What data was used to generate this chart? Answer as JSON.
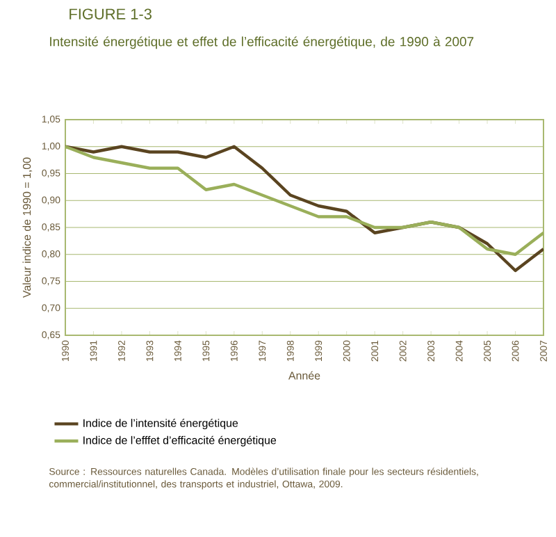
{
  "chart_data": {
    "type": "line",
    "title": "FIGURE 1-3",
    "subtitle": "Intensité énergétique et effet de l’efficacité énergétique, de 1990 à 2007",
    "xlabel": "Année",
    "ylabel": "Valeur indice de 1990 = 1,00",
    "categories": [
      "1990",
      "1991",
      "1992",
      "1993",
      "1994",
      "1995",
      "1996",
      "1997",
      "1998",
      "1999",
      "2000",
      "2001",
      "2002",
      "2003",
      "2004",
      "2005",
      "2006",
      "2007"
    ],
    "series": [
      {
        "name": "Indice de l’intensité énergétique",
        "color": "#5a4420",
        "values": [
          1.0,
          0.99,
          1.0,
          0.99,
          0.99,
          0.98,
          1.0,
          0.96,
          0.91,
          0.89,
          0.88,
          0.84,
          0.85,
          0.86,
          0.85,
          0.82,
          0.77,
          0.81
        ]
      },
      {
        "name": "Indice de l’efffet d’efficacité énergétique",
        "color": "#9aaf5a",
        "values": [
          1.0,
          0.98,
          0.97,
          0.96,
          0.96,
          0.92,
          0.93,
          0.91,
          0.89,
          0.87,
          0.87,
          0.85,
          0.85,
          0.86,
          0.85,
          0.81,
          0.8,
          0.84
        ]
      }
    ],
    "ylim": [
      0.65,
      1.05
    ],
    "yticks": [
      {
        "value": 0.65,
        "label": "0,65"
      },
      {
        "value": 0.7,
        "label": "0,70"
      },
      {
        "value": 0.75,
        "label": "0,75"
      },
      {
        "value": 0.8,
        "label": "0,80"
      },
      {
        "value": 0.85,
        "label": "0,85"
      },
      {
        "value": 0.9,
        "label": "0,90"
      },
      {
        "value": 0.95,
        "label": "0,95"
      },
      {
        "value": 1.0,
        "label": "1,00"
      },
      {
        "value": 1.05,
        "label": "1,05"
      }
    ],
    "grid": "y",
    "legend": "bottom",
    "annotations": [
      "Source : Ressources naturelles Canada. Modèles d’utilisation finale pour les secteurs résidentiels, commercial/institutionnel, des transports et industriel, Ottawa, 2009."
    ]
  }
}
